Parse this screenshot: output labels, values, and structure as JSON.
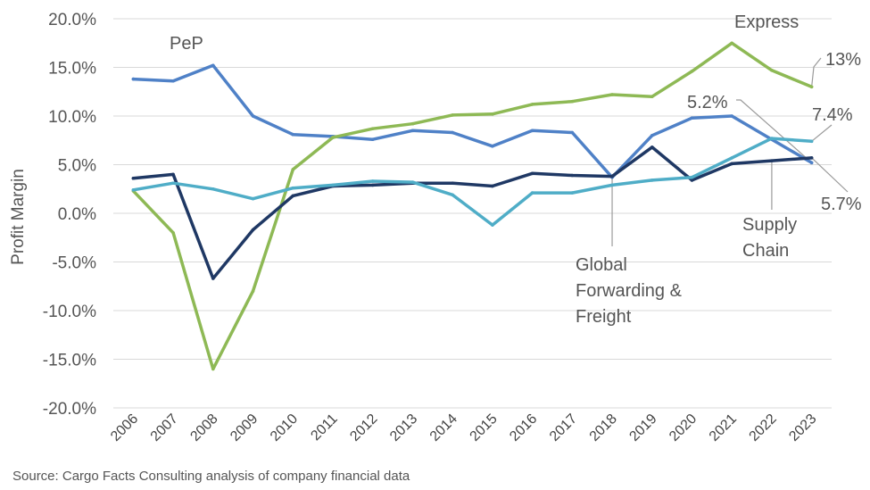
{
  "chart_data": {
    "type": "line",
    "ylabel": "Profit Margin",
    "xlabel": "",
    "ylim": [
      -20,
      20
    ],
    "y_ticks": [
      "20.0%",
      "15.0%",
      "10.0%",
      "5.0%",
      "0.0%",
      "-5.0%",
      "-10.0%",
      "-15.0%",
      "-20.0%"
    ],
    "y_tick_values": [
      20,
      15,
      10,
      5,
      0,
      -5,
      -10,
      -15,
      -20
    ],
    "categories": [
      "2006",
      "2007",
      "2008",
      "2009",
      "2010",
      "2011",
      "2012",
      "2013",
      "2014",
      "2015",
      "2016",
      "2017",
      "2018",
      "2019",
      "2020",
      "2021",
      "2022",
      "2023"
    ],
    "grid": "horizontal",
    "series": [
      {
        "name": "PeP",
        "color": "#4f81c7",
        "values": [
          13.8,
          13.6,
          15.2,
          10.0,
          8.1,
          7.9,
          7.6,
          8.5,
          8.3,
          6.9,
          8.5,
          8.3,
          3.7,
          8.0,
          9.8,
          10.0,
          7.6,
          5.2
        ]
      },
      {
        "name": "Express",
        "color": "#8eb955",
        "values": [
          2.3,
          -2.0,
          -16.0,
          -8.0,
          4.5,
          7.8,
          8.7,
          9.2,
          10.1,
          10.2,
          11.2,
          11.5,
          12.2,
          12.0,
          14.6,
          17.5,
          14.7,
          13.0
        ]
      },
      {
        "name": "Global Forwarding & Freight",
        "color": "#1f3864",
        "values": [
          3.6,
          4.0,
          -6.7,
          -1.7,
          1.8,
          2.8,
          2.9,
          3.1,
          3.1,
          2.8,
          4.1,
          3.9,
          3.8,
          6.8,
          3.4,
          5.1,
          5.4,
          5.7
        ]
      },
      {
        "name": "Supply Chain",
        "color": "#4fadc7",
        "values": [
          2.4,
          3.1,
          2.5,
          1.5,
          2.6,
          2.9,
          3.3,
          3.2,
          1.9,
          -1.2,
          2.1,
          2.1,
          2.9,
          3.4,
          3.7,
          5.7,
          7.7,
          7.4
        ]
      }
    ],
    "labels": {
      "pep": "PeP",
      "express": "Express",
      "gff_lines": [
        "Global",
        "Forwarding &",
        "Freight"
      ],
      "sc_lines": [
        "Supply",
        "Chain"
      ],
      "express_end": "13%",
      "pep_end": "5.2%",
      "sc_end": "7.4%",
      "gff_end": "5.7%"
    }
  },
  "footnote": "Source: Cargo Facts Consulting analysis of company financial data",
  "colors": {
    "background": "#ffffff",
    "grid": "#d9d9d9",
    "callout": "#9a9a9a"
  }
}
